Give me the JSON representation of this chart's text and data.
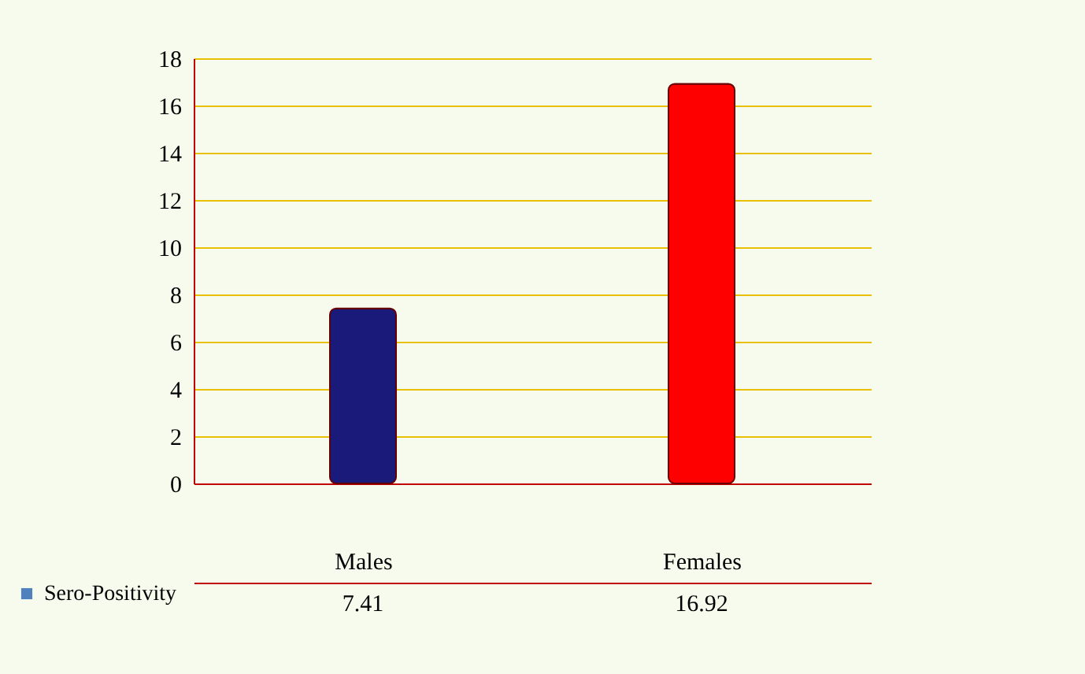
{
  "chart_data": {
    "type": "bar",
    "categories": [
      "Males",
      "Females"
    ],
    "series": [
      {
        "name": "Sero-Positivity",
        "color": "#4f81bd",
        "colors": [
          "#1a1a7a",
          "#ff0000"
        ],
        "values": [
          7.41,
          16.92
        ]
      }
    ],
    "ylim": [
      0,
      18
    ],
    "yticks": [
      0,
      2,
      4,
      6,
      8,
      10,
      12,
      14,
      16,
      18
    ],
    "grid": "y",
    "data_labels": true,
    "legend": "bottom left"
  }
}
